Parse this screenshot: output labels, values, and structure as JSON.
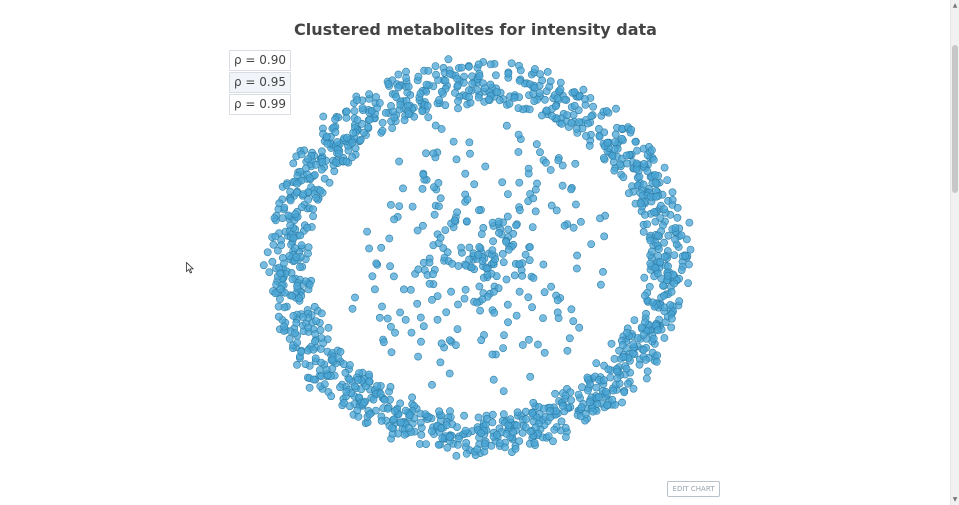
{
  "chart_data": {
    "type": "scatter",
    "title": "Clustered metabolites for intensity data",
    "layout": "network",
    "point_color": "#4aa6d6",
    "point_edge": "#2f7fa8",
    "grid": false,
    "legend": "none",
    "structure": {
      "outer_ring_points": 1350,
      "inner_scattered_points": 230,
      "center_cluster_points": 55,
      "description": "circular network layout: dense outer ring of metabolites, sparse interior, dense central cluster"
    }
  },
  "controls": {
    "rho_buttons": [
      {
        "label": "ρ = 0.90"
      },
      {
        "label": "ρ = 0.95"
      },
      {
        "label": "ρ = 0.99"
      }
    ],
    "edit_chart_label": "EDIT CHART"
  },
  "scrollbar": {
    "up_arrow": "▲",
    "down_arrow": "▼"
  }
}
